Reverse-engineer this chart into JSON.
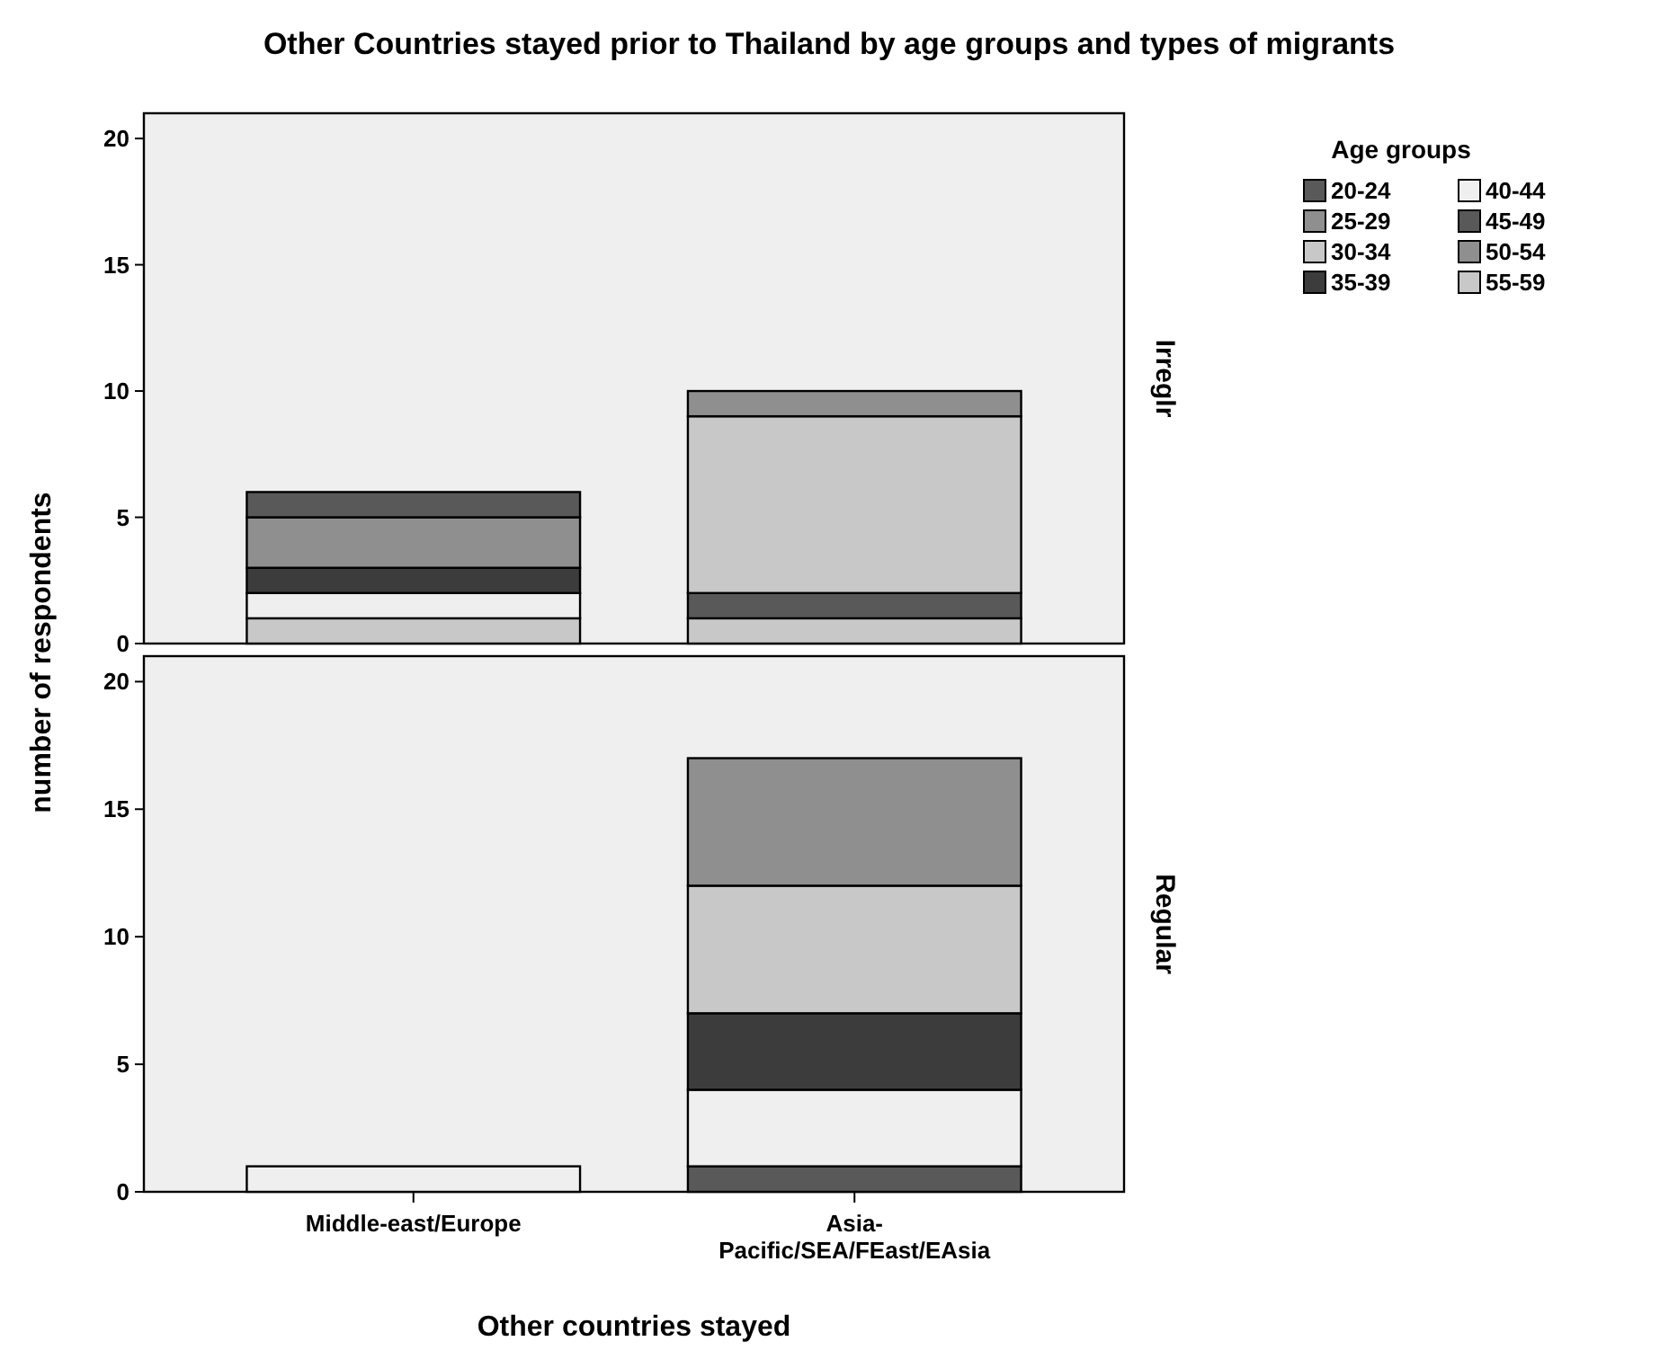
{
  "chart_data": [
    {
      "type": "bar",
      "title": "Other Countries stayed prior to Thailand by age groups and types of migrants",
      "ylabel": "number of respondents",
      "y2label": "Irreglr",
      "legend_title": "Age groups",
      "legend": "top right",
      "stacked": true,
      "tick_labels": "y",
      "ylim": [
        0,
        21
      ],
      "yticks": [
        0,
        5,
        10,
        15,
        20
      ],
      "series": [
        {
          "name": "55-59",
          "color": "#c8c8c8",
          "values": [
            1,
            1
          ]
        },
        {
          "name": "50-54",
          "color": "#8f8f8f",
          "values": [
            0,
            0
          ]
        },
        {
          "name": "45-49",
          "color": "#595959",
          "values": [
            0,
            1
          ]
        },
        {
          "name": "40-44",
          "color": "#efefef",
          "values": [
            1,
            0
          ]
        },
        {
          "name": "35-39",
          "color": "#3c3c3c",
          "values": [
            1,
            0
          ]
        },
        {
          "name": "30-34",
          "color": "#c8c8c8",
          "values": [
            0,
            7
          ]
        },
        {
          "name": "25-29",
          "color": "#8f8f8f",
          "values": [
            2,
            1
          ]
        },
        {
          "name": "20-24",
          "color": "#595959",
          "values": [
            1,
            0
          ]
        }
      ]
    },
    {
      "type": "bar",
      "xlabel": "Other countries stayed",
      "y2label": "Regular",
      "stacked": true,
      "categories": [
        "Middle-east/Europe",
        "Asia-Pacific/SEA/FEast/EAsia"
      ],
      "ylim": [
        0,
        21
      ],
      "yticks": [
        0,
        5,
        10,
        15,
        20
      ],
      "series": [
        {
          "color": "#c8c8c8",
          "values": [
            0,
            0
          ]
        },
        {
          "color": "#8f8f8f",
          "values": [
            0,
            0
          ]
        },
        {
          "color": "#595959",
          "values": [
            0,
            1
          ]
        },
        {
          "color": "#efefef",
          "values": [
            1,
            3
          ]
        },
        {
          "color": "#3c3c3c",
          "values": [
            0,
            3
          ]
        },
        {
          "color": "#c8c8c8",
          "values": [
            0,
            5
          ]
        },
        {
          "color": "#8f8f8f",
          "values": [
            0,
            5
          ]
        },
        {
          "color": "#595959",
          "values": [
            0,
            0
          ]
        }
      ]
    }
  ]
}
